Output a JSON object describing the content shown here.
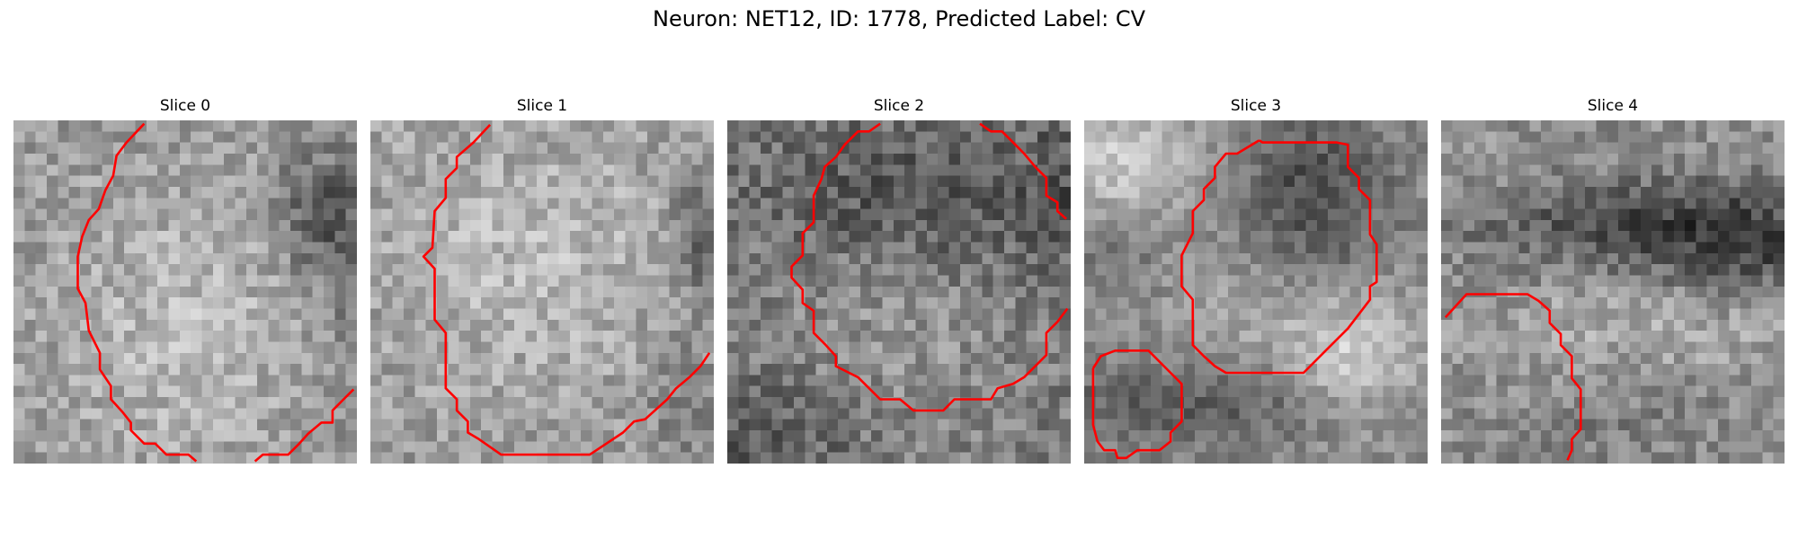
{
  "figure": {
    "title": "Neuron: NET12, ID: 1778, Predicted Label: CV"
  },
  "slices": [
    {
      "label": "Slice 0"
    },
    {
      "label": "Slice 1"
    },
    {
      "label": "Slice 2"
    },
    {
      "label": "Slice 3"
    },
    {
      "label": "Slice 4"
    }
  ],
  "style": {
    "contour_color": "#ff0000",
    "colormap": "grayscale"
  }
}
